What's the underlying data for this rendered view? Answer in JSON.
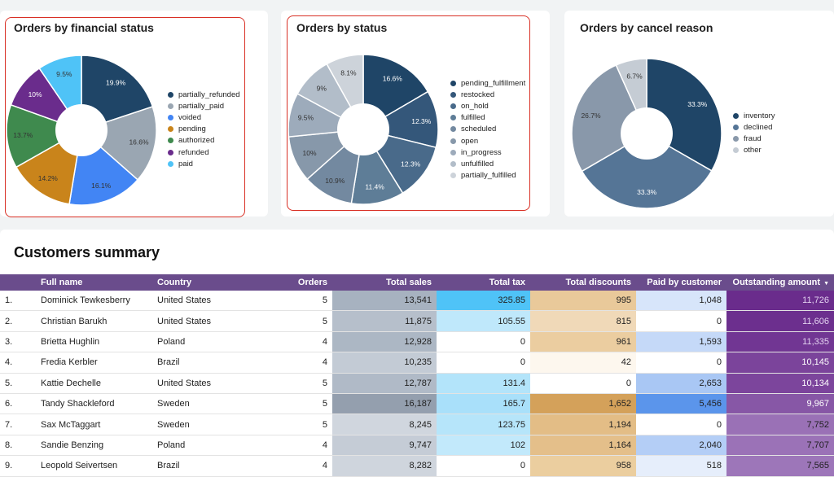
{
  "chart_data": [
    {
      "type": "pie",
      "title": "Orders by financial status",
      "categories": [
        "partially_refunded",
        "partially_paid",
        "voided",
        "pending",
        "authorized",
        "refunded",
        "paid"
      ],
      "values": [
        19.9,
        16.6,
        16.1,
        14.2,
        13.7,
        10,
        9.5
      ],
      "labels": [
        "19.9%",
        "16.6%",
        "16.1%",
        "14.2%",
        "13.7%",
        "10%",
        "9.5%"
      ],
      "colors": [
        "#1f4567",
        "#9aa6b2",
        "#4285f4",
        "#c9841b",
        "#3f8a4e",
        "#6a2c8c",
        "#4fc3f7"
      ],
      "label_colors": [
        "#ffffff",
        "#333333",
        "#333333",
        "#333333",
        "#333333",
        "#ffffff",
        "#333333"
      ]
    },
    {
      "type": "pie",
      "title": "Orders by status",
      "categories": [
        "pending_fulfillment",
        "restocked",
        "on_hold",
        "fulfilled",
        "scheduled",
        "open",
        "in_progress",
        "unfulfilled",
        "partially_fulfilled"
      ],
      "values": [
        16.6,
        12.3,
        12.3,
        11.4,
        10.9,
        10,
        9.5,
        9,
        8.1
      ],
      "labels": [
        "16.6%",
        "12.3%",
        "12.3%",
        "11.4%",
        "10.9%",
        "10%",
        "9.5%",
        "9%",
        "8.1%"
      ],
      "colors": [
        "#1f4567",
        "#34577a",
        "#496a8a",
        "#5e7d97",
        "#7389a0",
        "#8798aa",
        "#9dabbb",
        "#b2bdc9",
        "#cdd3da"
      ],
      "label_colors": [
        "#ffffff",
        "#ffffff",
        "#ffffff",
        "#ffffff",
        "#333333",
        "#333333",
        "#333333",
        "#333333",
        "#333333"
      ]
    },
    {
      "type": "pie",
      "title": "Orders by cancel reason",
      "categories": [
        "inventory",
        "declined",
        "fraud",
        "other"
      ],
      "values": [
        33.3,
        33.3,
        26.7,
        6.7
      ],
      "labels": [
        "33.3%",
        "33.3%",
        "26.7%",
        "6.7%"
      ],
      "colors": [
        "#1f4567",
        "#557596",
        "#8998aa",
        "#c5ccd4"
      ],
      "label_colors": [
        "#ffffff",
        "#ffffff",
        "#333333",
        "#333333"
      ]
    }
  ],
  "summary": {
    "title": "Customers summary",
    "columns": [
      "Full name",
      "Country",
      "Orders",
      "Total sales",
      "Total tax",
      "Total discounts",
      "Paid by customer",
      "Outstanding amount"
    ],
    "sort_icon": "▼",
    "rows": [
      {
        "idx": "1.",
        "name": "Dominick Tewkesberry",
        "country": "United States",
        "orders": "5",
        "sales": "13,541",
        "tax": "325.85",
        "disc": "995",
        "paid": "1,048",
        "out": "11,726"
      },
      {
        "idx": "2.",
        "name": "Christian Barukh",
        "country": "United States",
        "orders": "5",
        "sales": "11,875",
        "tax": "105.55",
        "disc": "815",
        "paid": "0",
        "out": "11,606"
      },
      {
        "idx": "3.",
        "name": "Brietta Hughlin",
        "country": "Poland",
        "orders": "4",
        "sales": "12,928",
        "tax": "0",
        "disc": "961",
        "paid": "1,593",
        "out": "11,335"
      },
      {
        "idx": "4.",
        "name": "Fredia Kerbler",
        "country": "Brazil",
        "orders": "4",
        "sales": "10,235",
        "tax": "0",
        "disc": "42",
        "paid": "0",
        "out": "10,145"
      },
      {
        "idx": "5.",
        "name": "Kattie Dechelle",
        "country": "United States",
        "orders": "5",
        "sales": "12,787",
        "tax": "131.4",
        "disc": "0",
        "paid": "2,653",
        "out": "10,134"
      },
      {
        "idx": "6.",
        "name": "Tandy Shackleford",
        "country": "Sweden",
        "orders": "5",
        "sales": "16,187",
        "tax": "165.7",
        "disc": "1,652",
        "paid": "5,456",
        "out": "9,967"
      },
      {
        "idx": "7.",
        "name": "Sax McTaggart",
        "country": "Sweden",
        "orders": "5",
        "sales": "8,245",
        "tax": "123.75",
        "disc": "1,194",
        "paid": "0",
        "out": "7,752"
      },
      {
        "idx": "8.",
        "name": "Sandie Benzing",
        "country": "Poland",
        "orders": "4",
        "sales": "9,747",
        "tax": "102",
        "disc": "1,164",
        "paid": "2,040",
        "out": "7,707"
      },
      {
        "idx": "9.",
        "name": "Leopold Seivertsen",
        "country": "Brazil",
        "orders": "4",
        "sales": "8,282",
        "tax": "0",
        "disc": "958",
        "paid": "518",
        "out": "7,565"
      }
    ],
    "heat_colors": {
      "sales": [
        "#a7b2c0",
        "#b6bfcb",
        "#acb7c4",
        "#c3cbd5",
        "#b0bac7",
        "#949fae",
        "#d0d6de",
        "#c5ccd6",
        "#cfd5dd"
      ],
      "tax": [
        "#4fc3f7",
        "#bfe8fb",
        "#ffffff",
        "#ffffff",
        "#b3e4fa",
        "#a9e0fa",
        "#b6e5fa",
        "#c2e9fb",
        "#ffffff"
      ],
      "disc": [
        "#e9c99a",
        "#f0d9b8",
        "#ebcda0",
        "#fdf7ee",
        "#ffffff",
        "#d4a15a",
        "#e3bd86",
        "#e4bf8a",
        "#ebce9f"
      ],
      "paid": [
        "#d7e5fa",
        "#ffffff",
        "#c5d9f8",
        "#ffffff",
        "#a9c7f4",
        "#5b95eb",
        "#ffffff",
        "#b4cef6",
        "#e6eefb"
      ],
      "out": [
        "#6a2c8c",
        "#6c2f8e",
        "#713693",
        "#7b449b",
        "#7c459c",
        "#8757a6",
        "#9a71b6",
        "#9b72b7",
        "#9d76b9"
      ]
    },
    "out_text": [
      "#e3d2f0",
      "#e3d2f0",
      "#e3d2f0",
      "#ffffff",
      "#ffffff",
      "#ffffff",
      "#1f1f1f",
      "#1f1f1f",
      "#1f1f1f"
    ]
  }
}
